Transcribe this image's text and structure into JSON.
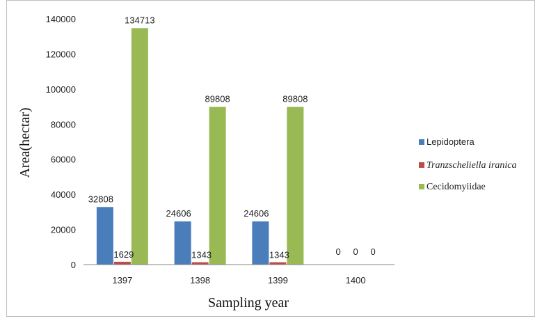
{
  "chart_data": {
    "type": "bar",
    "categories": [
      "1397",
      "1398",
      "1399",
      "1400"
    ],
    "series": [
      {
        "name": "Lepidoptera",
        "values": [
          32808,
          24606,
          24606,
          0
        ],
        "color": "#4a7ebb",
        "labels": [
          "32808",
          "24606",
          "24606",
          "0"
        ]
      },
      {
        "name": "Tranzscheliella iranica",
        "values": [
          1629,
          1343,
          1343,
          0
        ],
        "color": "#be4b48",
        "labels": [
          "1629",
          "1343",
          "1343",
          "0"
        ]
      },
      {
        "name": "Cecidomyiidae",
        "values": [
          134713,
          89808,
          89808,
          0
        ],
        "color": "#98b954",
        "labels": [
          "134713",
          "89808",
          "89808",
          "0"
        ]
      }
    ],
    "xlabel": "Sampling year",
    "ylabel": "Area(hectar)",
    "ylim": [
      0,
      140000
    ],
    "yticks": [
      0,
      20000,
      40000,
      60000,
      80000,
      100000,
      120000,
      140000
    ],
    "ytick_labels": [
      "0",
      "20000",
      "40000",
      "60000",
      "80000",
      "100000",
      "120000",
      "140000"
    ],
    "grid": false,
    "legend_position": "right"
  }
}
